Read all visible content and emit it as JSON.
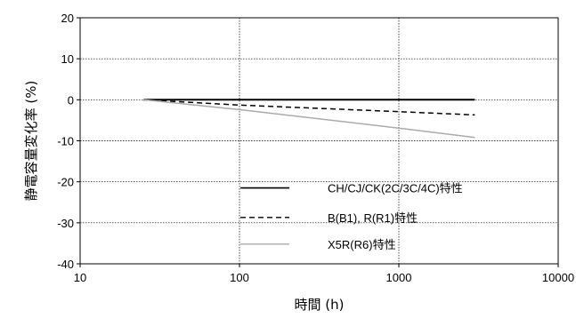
{
  "chart_data": {
    "type": "line",
    "title": "",
    "xlabel": "時間 (h)",
    "ylabel": "静電容量変化率 (%)",
    "xscale": "log",
    "xlim": [
      10,
      10000
    ],
    "ylim": [
      -40,
      20
    ],
    "xticks": [
      10,
      100,
      1000,
      10000
    ],
    "xtick_labels": [
      "10",
      "100",
      "1000",
      "10000"
    ],
    "yticks": [
      20,
      10,
      0,
      -10,
      -20,
      -30,
      -40
    ],
    "ytick_labels": [
      "20",
      "10",
      "0",
      "-10",
      "-20",
      "-30",
      "-40"
    ],
    "grid": "dotted",
    "legend_position": "lower-right",
    "series": [
      {
        "name": "CH/CJ/CK(2C/3C/4C)特性",
        "color": "#000000",
        "style": "solid",
        "x": [
          25,
          3000
        ],
        "y": [
          0,
          0
        ]
      },
      {
        "name": "B(B1), R(R1)特性",
        "color": "#000000",
        "style": "dashed",
        "x": [
          25,
          100,
          1000,
          3000
        ],
        "y": [
          0,
          -1.3,
          -2.9,
          -3.7
        ]
      },
      {
        "name": "X5R(R6)特性",
        "color": "#aaaaaa",
        "style": "solid",
        "x": [
          25,
          100,
          1000,
          3000
        ],
        "y": [
          0,
          -2.4,
          -6.9,
          -9.2
        ]
      }
    ]
  }
}
